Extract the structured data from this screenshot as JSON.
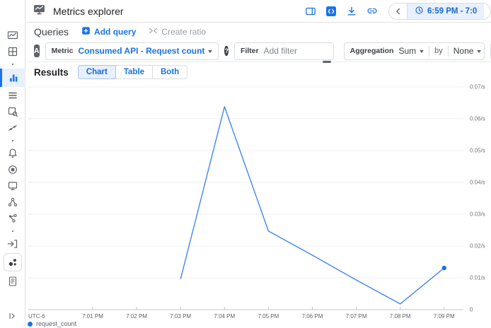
{
  "header": {
    "title": "Metrics explorer",
    "time_range": "6:59 PM - 7:0"
  },
  "queries": {
    "title": "Queries",
    "add_query_label": "Add query",
    "create_ratio_label": "Create ratio"
  },
  "builder": {
    "query_letter": "A",
    "metric_label": "Metric",
    "metric_value": "Consumed API - Request count",
    "help_glyph": "?",
    "filter_label": "Filter",
    "filter_placeholder": "Add filter",
    "aggregation_label": "Aggregation",
    "aggregation_value": "Sum",
    "by_label": "by",
    "by_value": "None",
    "add_button_glyph": "+"
  },
  "results": {
    "label": "Results",
    "tabs": [
      "Chart",
      "Table",
      "Both"
    ],
    "active_tab": "Chart"
  },
  "chart_data": {
    "type": "line",
    "title": "",
    "x_axis_note": "UTC-6",
    "x_ticks": [
      "7:01 PM",
      "7:02 PM",
      "7:03 PM",
      "7:04 PM",
      "7:05 PM",
      "7:06 PM",
      "7:07 PM",
      "7:08 PM",
      "7:09 PM"
    ],
    "y_ticks": [
      "0.07/s",
      "0.06/s",
      "0.05/s",
      "0.04/s",
      "0.03/s",
      "0.02/s",
      "0.01/s",
      "0"
    ],
    "ylim": [
      0,
      0.07
    ],
    "grid": "horizontal",
    "legend_position": "bottom-left",
    "series": [
      {
        "name": "request_count",
        "color": "#4285f4",
        "end_dot": true,
        "points": [
          {
            "x": "7:03 PM",
            "y": 0.0096
          },
          {
            "x": "7:04 PM",
            "y": 0.0638
          },
          {
            "x": "7:05 PM",
            "y": 0.0247
          },
          {
            "x": "7:06 PM",
            "y": 0.0171
          },
          {
            "x": "7:07 PM",
            "y": 0.0093
          },
          {
            "x": "7:08 PM",
            "y": 0.0018
          },
          {
            "x": "7:09 PM",
            "y": 0.0131
          }
        ]
      }
    ]
  },
  "legend": {
    "series_label": "request_count"
  },
  "colors": {
    "accent": "#1a73e8",
    "line": "#4285f4",
    "active_bg": "#e8f0fe",
    "time_pill_text": "#1967d2"
  }
}
